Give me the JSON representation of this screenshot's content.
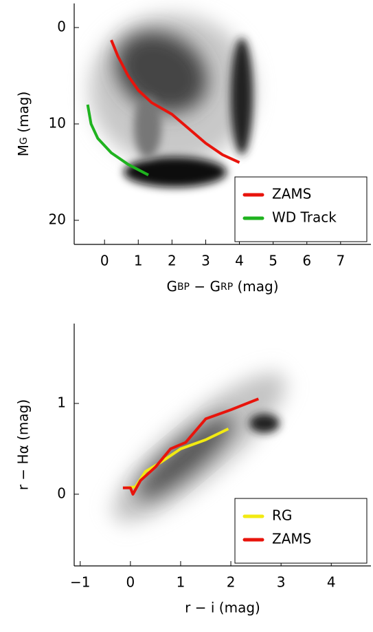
{
  "chart_data": [
    {
      "type": "line",
      "xlabel_parts": [
        "G",
        "BP",
        " − ",
        "G",
        "RP",
        " (mag)"
      ],
      "ylabel_parts": [
        "M",
        "G",
        " (mag)"
      ],
      "xlim": [
        -0.9,
        7.9
      ],
      "ylim": [
        22.5,
        -2.5
      ],
      "xticks": [
        0,
        1,
        2,
        3,
        4,
        5,
        6,
        7
      ],
      "yticks": [
        0,
        10,
        20
      ],
      "legend": "lower right",
      "series": [
        {
          "name": "ZAMS",
          "color": "#e8140c",
          "x": [
            0.2,
            0.4,
            0.7,
            1.0,
            1.4,
            2.0,
            2.5,
            3.0,
            3.5,
            4.0
          ],
          "values": [
            1.3,
            3.0,
            5.0,
            6.5,
            7.8,
            9.0,
            10.5,
            12.0,
            13.2,
            14.0
          ]
        },
        {
          "name": "WD Track",
          "color": "#1fb31f",
          "x": [
            -0.5,
            -0.4,
            -0.2,
            0.2,
            0.7,
            1.3
          ],
          "values": [
            8.0,
            10.0,
            11.5,
            13.0,
            14.2,
            15.3
          ]
        }
      ]
    },
    {
      "type": "line",
      "xlabel": "r − i (mag)",
      "ylabel": "r − Hα (mag)",
      "xlim": [
        -1.12,
        4.79
      ],
      "ylim": [
        -0.79,
        1.88
      ],
      "xticks": [
        {
          "value": -1,
          "label": "−1"
        },
        0,
        1,
        2,
        3,
        4
      ],
      "yticks": [
        0,
        1
      ],
      "legend": "lower right",
      "series": [
        {
          "name": "RG",
          "color": "#f2ea12",
          "x": [
            -0.1,
            0.1,
            0.3,
            0.6,
            1.0,
            1.5,
            1.95
          ],
          "values": [
            0.07,
            0.08,
            0.25,
            0.35,
            0.5,
            0.6,
            0.72
          ]
        },
        {
          "name": "ZAMS",
          "color": "#e8140c",
          "x": [
            -0.15,
            0.0,
            0.05,
            0.2,
            0.5,
            0.8,
            1.1,
            1.5,
            2.0,
            2.55
          ],
          "values": [
            0.07,
            0.07,
            0.0,
            0.15,
            0.3,
            0.5,
            0.57,
            0.83,
            0.93,
            1.05
          ]
        }
      ]
    }
  ]
}
